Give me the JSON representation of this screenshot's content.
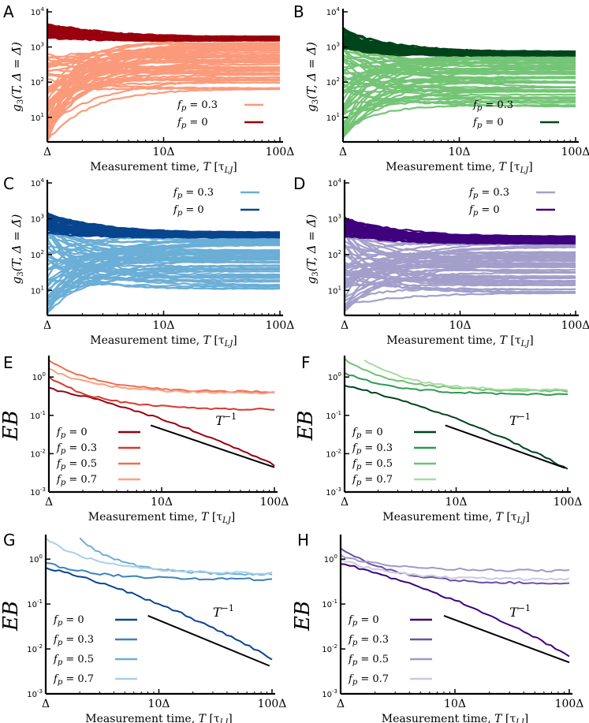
{
  "chart_data": [
    {
      "panel": "A",
      "type": "line",
      "kind": "g3",
      "title": "",
      "xlabel": "Measurement time, T [τLJ]",
      "ylabel": "g3(T, Δ = Δ̄)",
      "xscale": "log",
      "yscale": "log",
      "xlim": [
        1,
        100
      ],
      "ylim": [
        2,
        10000
      ],
      "xtick_labels": [
        "Δ",
        "10Δ",
        "100Δ"
      ],
      "ytick_labels": [
        "10^1",
        "10^2",
        "10^3",
        "10^4"
      ],
      "legend_position": "bottom-right",
      "series": [
        {
          "name": "f_p = 0.3",
          "label": "fp = 0.3",
          "color": "#fb9a7a",
          "plateau_range": [
            55,
            1700
          ],
          "start_range": [
            2,
            700
          ],
          "n_lines": 55
        },
        {
          "name": "f_p = 0",
          "label": "fp = 0",
          "color": "#99000d",
          "plateau_range": [
            1500,
            2000
          ],
          "start_range": [
            1800,
            4800
          ],
          "n_lines": 45
        }
      ]
    },
    {
      "panel": "B",
      "type": "line",
      "kind": "g3",
      "title": "",
      "xlabel": "Measurement time, T [τLJ]",
      "ylabel": "g3(T, Δ = Δ̄)",
      "xscale": "log",
      "yscale": "log",
      "xlim": [
        1,
        100
      ],
      "ylim": [
        2,
        10000
      ],
      "xtick_labels": [
        "Δ",
        "10Δ",
        "100Δ"
      ],
      "ytick_labels": [
        "10^1",
        "10^2",
        "10^3",
        "10^4"
      ],
      "legend_position": "bottom-right",
      "series": [
        {
          "name": "f_p = 0.3",
          "label": "fp = 0.3",
          "color": "#74c476",
          "plateau_range": [
            18,
            700
          ],
          "start_range": [
            2,
            1500
          ],
          "n_lines": 55
        },
        {
          "name": "f_p = 0",
          "label": "fp = 0",
          "color": "#00441b",
          "plateau_range": [
            550,
            750
          ],
          "start_range": [
            900,
            3500
          ],
          "n_lines": 45
        }
      ]
    },
    {
      "panel": "C",
      "type": "line",
      "kind": "g3",
      "title": "",
      "xlabel": "Measurement time, T [τLJ]",
      "ylabel": "g3(T, Δ = Δ̄)",
      "xscale": "log",
      "yscale": "log",
      "xlim": [
        1,
        100
      ],
      "ylim": [
        2,
        10000
      ],
      "xtick_labels": [
        "Δ",
        "10Δ",
        "100Δ"
      ],
      "ytick_labels": [
        "10^1",
        "10^2",
        "10^3",
        "10^4"
      ],
      "legend_position": "top-right",
      "series": [
        {
          "name": "f_p = 0.3",
          "label": "fp = 0.3",
          "color": "#6baed6",
          "plateau_range": [
            8,
            330
          ],
          "start_range": [
            2,
            1300
          ],
          "n_lines": 55
        },
        {
          "name": "f_p = 0",
          "label": "fp = 0",
          "color": "#08458f",
          "plateau_range": [
            300,
            420
          ],
          "start_range": [
            400,
            1500
          ],
          "n_lines": 45
        }
      ]
    },
    {
      "panel": "D",
      "type": "line",
      "kind": "g3",
      "title": "",
      "xlabel": "",
      "ylabel": "g3(T, Δ = Δ̄)",
      "xscale": "log",
      "yscale": "log",
      "xlim": [
        1,
        100
      ],
      "ylim": [
        2,
        10000
      ],
      "xtick_labels": [
        "Δ",
        "10Δ",
        "100Δ"
      ],
      "ytick_labels": [
        "10^1",
        "10^2",
        "10^3",
        "10^4"
      ],
      "legend_position": "top-right",
      "series": [
        {
          "name": "f_p = 0.3",
          "label": "fp = 0.3",
          "color": "#a39fcb",
          "plateau_range": [
            8,
            250
          ],
          "start_range": [
            2,
            900
          ],
          "n_lines": 55
        },
        {
          "name": "f_p = 0",
          "label": "fp = 0",
          "color": "#3f007d",
          "plateau_range": [
            200,
            330
          ],
          "start_range": [
            300,
            1100
          ],
          "n_lines": 45
        }
      ]
    },
    {
      "panel": "E",
      "type": "line",
      "kind": "eb",
      "title": "",
      "xlabel": "Measurement time, T [τLJ]",
      "ylabel": "EB",
      "xscale": "log",
      "yscale": "log",
      "xlim": [
        1,
        100
      ],
      "ylim": [
        0.001,
        3
      ],
      "xtick_labels": [
        "Δ",
        "10Δ",
        "100Δ"
      ],
      "ytick_labels": [
        "10^0",
        "10^-1",
        "10^-2",
        "10^-3"
      ],
      "legend_position": "bottom-left",
      "annotation": "T^-1",
      "reference_line": {
        "label": "T^-1",
        "x": [
          8,
          100
        ],
        "y": [
          0.055,
          0.0044
        ]
      },
      "series": [
        {
          "name": "f_p = 0",
          "label": "fp = 0",
          "color": "#99000d",
          "x_start": 1,
          "y0": 0.5,
          "y_end": 0.005,
          "mode": "powerlaw"
        },
        {
          "name": "f_p = 0.3",
          "label": "fp = 0.3",
          "color": "#d73a2d",
          "x_start": 1,
          "y0": 1.0,
          "y_end": 0.14,
          "mode": "decay"
        },
        {
          "name": "f_p = 0.5",
          "label": "fp = 0.5",
          "color": "#f06e4d",
          "x_start": 1,
          "y0": 2.8,
          "y_end": 0.4,
          "mode": "decay"
        },
        {
          "name": "f_p = 0.7",
          "label": "fp = 0.7",
          "color": "#fc9f80",
          "x_start": 1,
          "y0": 1.6,
          "y_end": 0.38,
          "mode": "decay"
        }
      ]
    },
    {
      "panel": "F",
      "type": "line",
      "kind": "eb",
      "title": "",
      "xlabel": "Measurement time, T [τLJ]",
      "ylabel": "EB",
      "xscale": "log",
      "yscale": "log",
      "xlim": [
        1,
        100
      ],
      "ylim": [
        0.001,
        3
      ],
      "xtick_labels": [
        "Δ",
        "10Δ",
        "100Δ"
      ],
      "ytick_labels": [
        "10^0",
        "10^-1",
        "10^-2",
        "10^-3"
      ],
      "legend_position": "bottom-left",
      "annotation": "T^-1",
      "reference_line": {
        "label": "T^-1",
        "x": [
          8,
          95
        ],
        "y": [
          0.055,
          0.0042
        ]
      },
      "series": [
        {
          "name": "f_p = 0",
          "label": "fp = 0",
          "color": "#00441b",
          "x_start": 1,
          "y0": 0.6,
          "y_end": 0.004,
          "mode": "powerlaw"
        },
        {
          "name": "f_p = 0.3",
          "label": "fp = 0.3",
          "color": "#2f9a52",
          "x_start": 1,
          "y0": 1.3,
          "y_end": 0.35,
          "mode": "decay"
        },
        {
          "name": "f_p = 0.5",
          "label": "fp = 0.5",
          "color": "#6cc371",
          "x_start": 1,
          "y0": 2.9,
          "y_end": 0.42,
          "mode": "decay"
        },
        {
          "name": "f_p = 0.7",
          "label": "fp = 0.7",
          "color": "#a6dba0",
          "x_start": 1.5,
          "y0": 2.9,
          "y_end": 0.45,
          "mode": "decay"
        }
      ]
    },
    {
      "panel": "G",
      "type": "line",
      "kind": "eb",
      "title": "",
      "xlabel": "Measurement time, T [τLJ]",
      "ylabel": "EB",
      "xscale": "log",
      "yscale": "log",
      "xlim": [
        1,
        100
      ],
      "ylim": [
        0.001,
        3
      ],
      "xtick_labels": [
        "Δ",
        "10Δ",
        "100Δ"
      ],
      "ytick_labels": [
        "10^0",
        "10^-1",
        "10^-2",
        "10^-3"
      ],
      "legend_position": "bottom-left",
      "annotation": "T^-1",
      "reference_line": {
        "label": "T^-1",
        "x": [
          8,
          95
        ],
        "y": [
          0.055,
          0.0042
        ]
      },
      "series": [
        {
          "name": "f_p = 0",
          "label": "fp = 0",
          "color": "#08458f",
          "x_start": 1,
          "y0": 0.65,
          "y_end": 0.006,
          "mode": "powerlaw"
        },
        {
          "name": "f_p = 0.3",
          "label": "fp = 0.3",
          "color": "#3a82bf",
          "x_start": 1,
          "y0": 0.85,
          "y_end": 0.35,
          "mode": "decay"
        },
        {
          "name": "f_p = 0.5",
          "label": "fp = 0.5",
          "color": "#6baed6",
          "x_start": 2,
          "y0": 2.8,
          "y_end": 0.45,
          "mode": "decay"
        },
        {
          "name": "f_p = 0.7",
          "label": "fp = 0.7",
          "color": "#a9cfe8",
          "x_start": 1,
          "y0": 2.9,
          "y_end": 0.48,
          "mode": "decay"
        }
      ]
    },
    {
      "panel": "H",
      "type": "line",
      "kind": "eb",
      "title": "",
      "xlabel": "Measurement time, T [τLJ]",
      "ylabel": "EB",
      "xscale": "log",
      "yscale": "log",
      "xlim": [
        1,
        100
      ],
      "ylim": [
        0.001,
        3
      ],
      "xtick_labels": [
        "Δ",
        "10Δ",
        "100Δ"
      ],
      "ytick_labels": [
        "10^0",
        "10^-1",
        "10^-2",
        "10^-3"
      ],
      "legend_position": "bottom-left",
      "annotation": "T^-1",
      "reference_line": {
        "label": "T^-1",
        "x": [
          8,
          100
        ],
        "y": [
          0.055,
          0.005
        ]
      },
      "series": [
        {
          "name": "f_p = 0",
          "label": "fp = 0",
          "color": "#3f007d",
          "x_start": 1,
          "y0": 0.8,
          "y_end": 0.007,
          "mode": "powerlaw"
        },
        {
          "name": "f_p = 0.3",
          "label": "fp = 0.3",
          "color": "#6a51a3",
          "x_start": 1,
          "y0": 1.8,
          "y_end": 0.28,
          "mode": "decay"
        },
        {
          "name": "f_p = 0.5",
          "label": "fp = 0.5",
          "color": "#9e9ac8",
          "x_start": 1,
          "y0": 1.2,
          "y_end": 0.55,
          "mode": "decay"
        },
        {
          "name": "f_p = 0.7",
          "label": "fp = 0.7",
          "color": "#cbc9e2",
          "x_start": 1,
          "y0": 1.0,
          "y_end": 0.35,
          "mode": "decay"
        }
      ]
    }
  ]
}
